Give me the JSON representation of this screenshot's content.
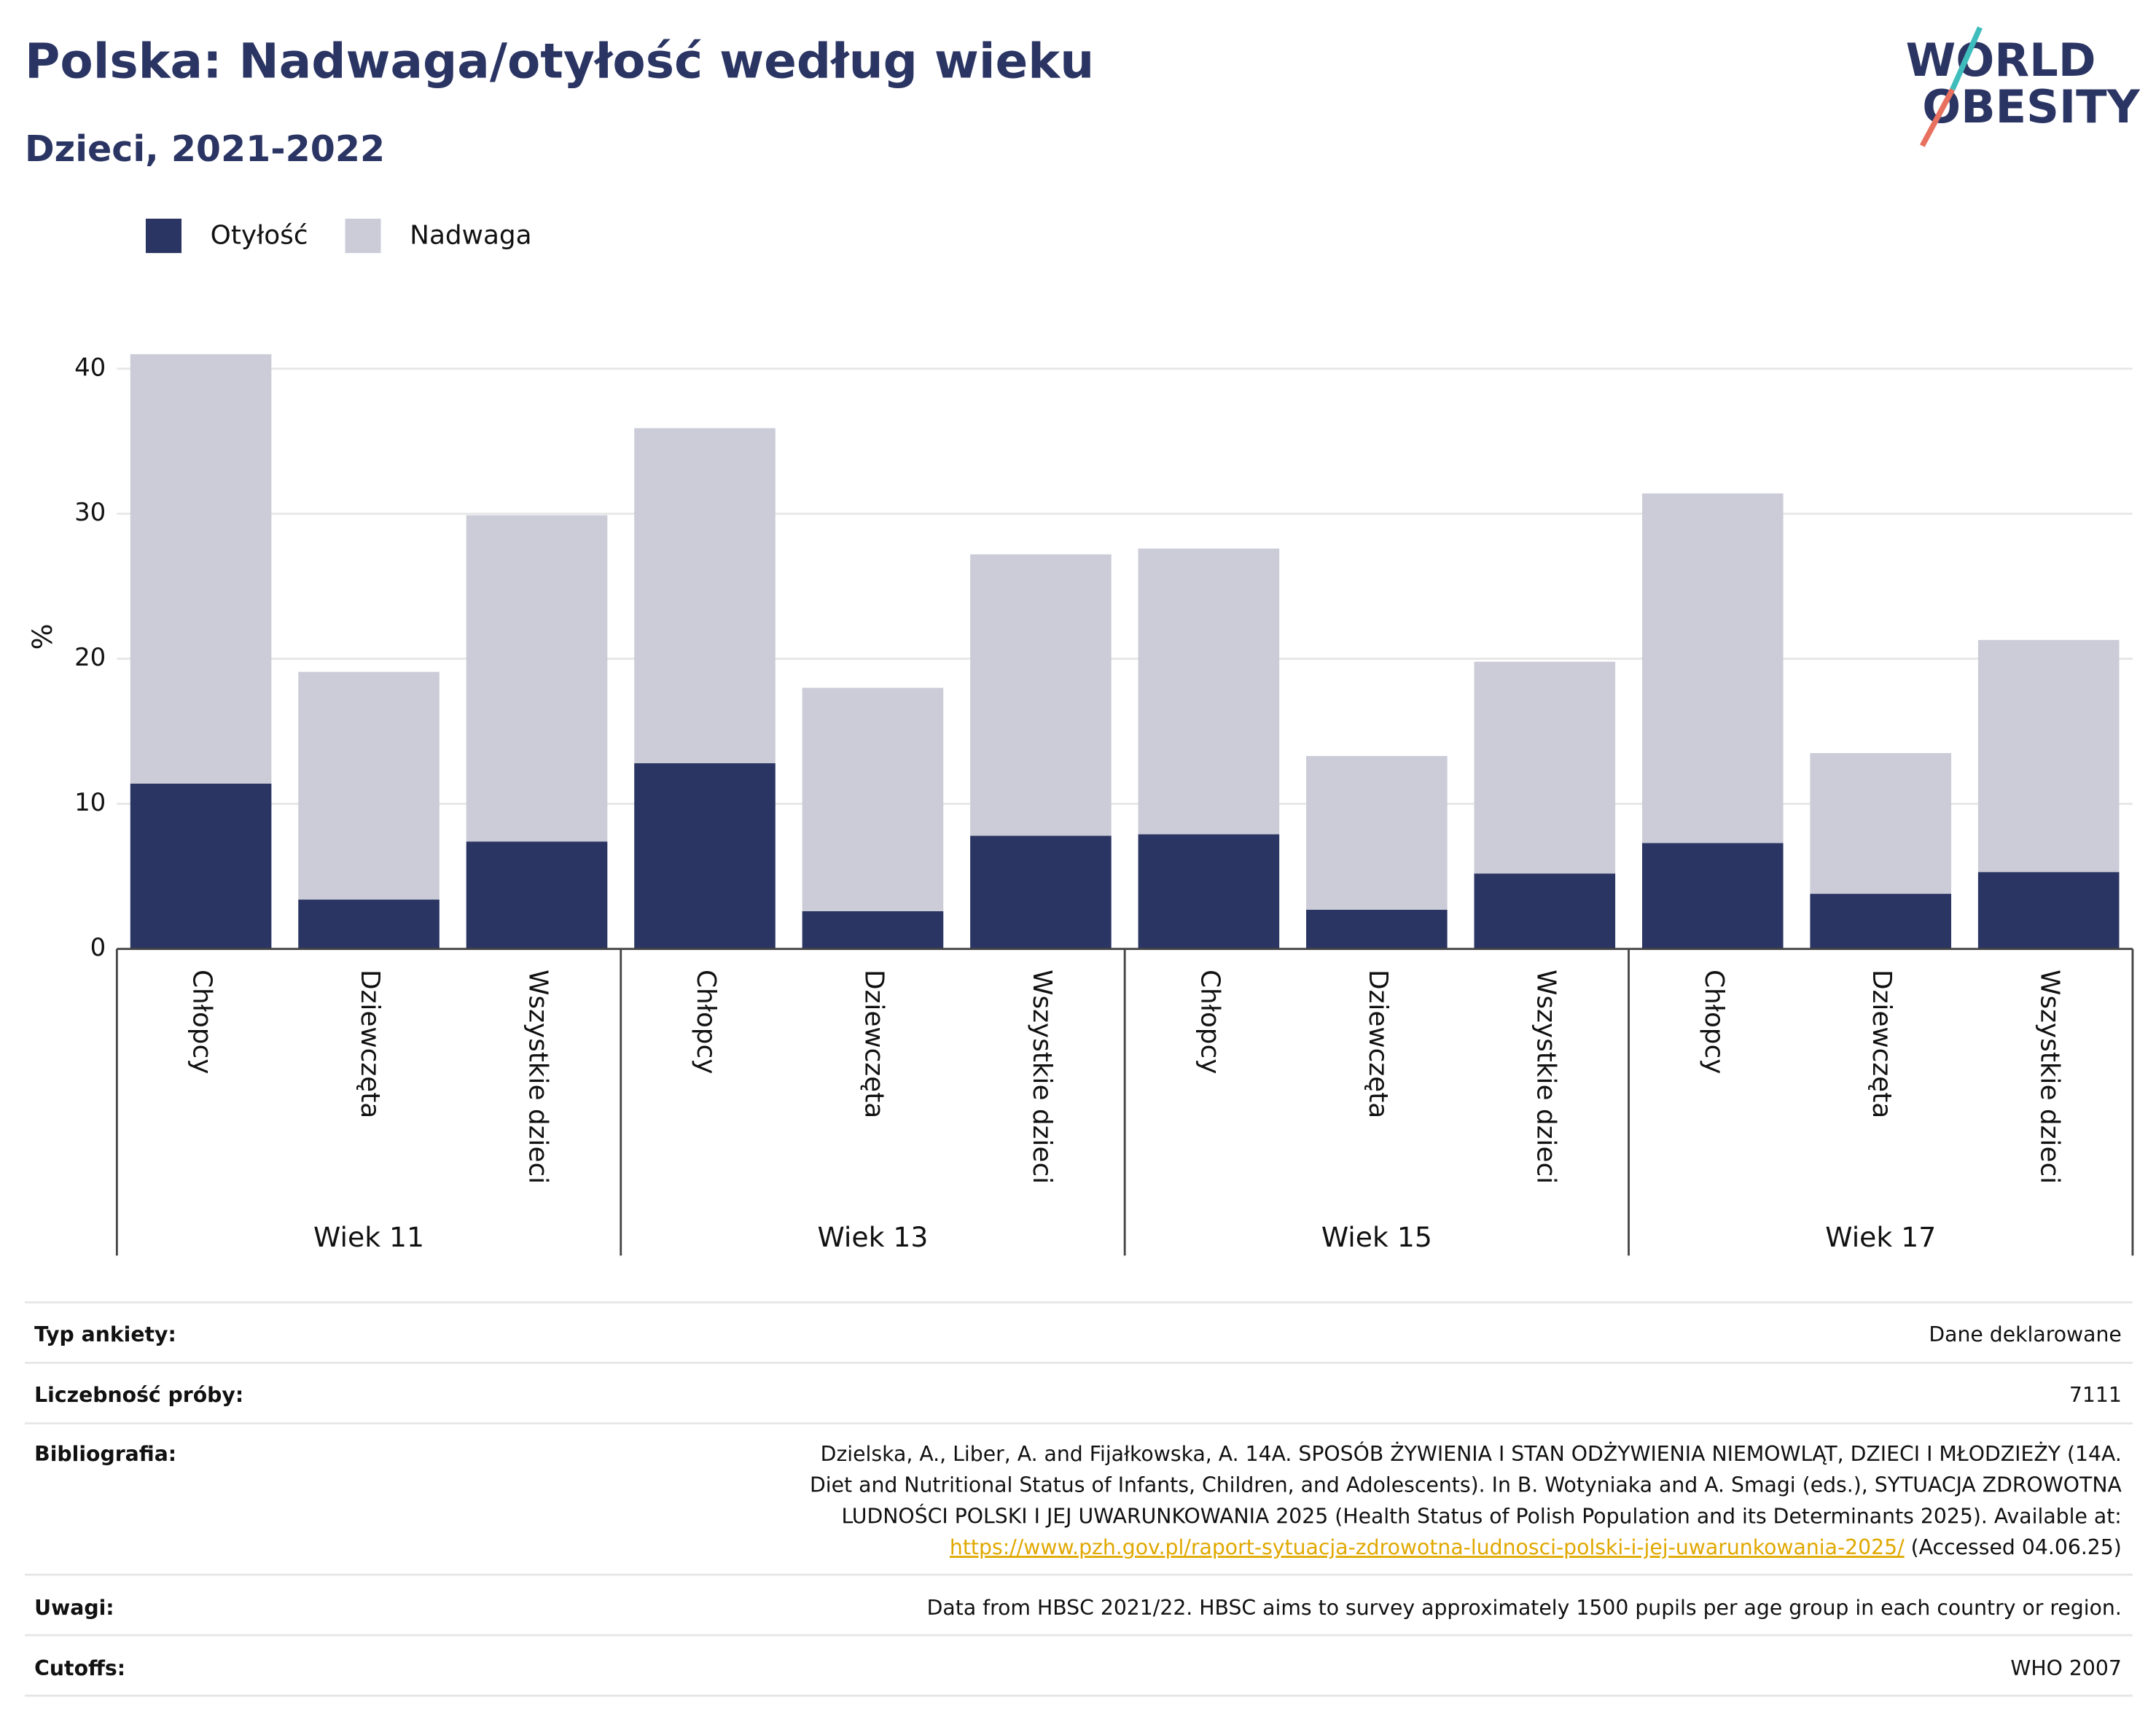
{
  "chart_data": {
    "type": "stacked_bar",
    "title": "Polska: Nadwaga/otyłość według wieku",
    "subtitle": "Dzieci, 2021-2022",
    "ylabel": "%",
    "categories": [
      "Chłopcy",
      "Dziewczęta",
      "Wszystkie dzieci",
      "Chłopcy",
      "Dziewczęta",
      "Wszystkie dzieci",
      "Chłopcy",
      "Dziewczęta",
      "Wszystkie dzieci",
      "Chłopcy",
      "Dziewczęta",
      "Wszystkie dzieci"
    ],
    "groups": [
      "Wiek 11",
      "Wiek 13",
      "Wiek 15",
      "Wiek 17"
    ],
    "series": [
      {
        "name": "Otyłość",
        "color": "#2b3563",
        "values": [
          11.4,
          3.4,
          7.4,
          12.8,
          2.6,
          7.8,
          7.9,
          2.7,
          5.2,
          7.3,
          3.8,
          5.3
        ]
      },
      {
        "name": "Nadwaga",
        "color": "#cbccd8",
        "values": [
          29.6,
          15.7,
          22.5,
          23.1,
          15.4,
          19.4,
          19.7,
          10.6,
          14.6,
          24.1,
          9.7,
          16.0
        ]
      }
    ],
    "ylim": [
      0,
      42
    ],
    "yticks": [
      0,
      10,
      20,
      30,
      40
    ],
    "grid": true,
    "legend": "top-left"
  },
  "logo": [
    "WORLD",
    "OBESITY"
  ],
  "info": [
    {
      "label": "Typ ankiety:",
      "value": "Dane deklarowane"
    },
    {
      "label": "Liczebność próby:",
      "value": "7111"
    }
  ],
  "bibliography": {
    "label": "Bibliografia:",
    "lines": [
      "Dzielska, A., Liber, A. and Fijałkowska, A. 14A. SPOSÓB ŻYWIENIA I STAN ODŻYWIENIA NIEMOWLĄT, DZIECI I MŁODZIEŻY (14A.",
      "Diet and Nutritional Status of Infants, Children, and Adolescents). In B. Wotyniaka and A. Smagi (eds.), SYTUACJA ZDROWOTNA",
      "LUDNOŚCI POLSKI I JEJ UWARUNKOWANIA 2025 (Health Status of Polish Population and its Determinants 2025). Available at:"
    ],
    "link": "https://www.pzh.gov.pl/raport-sytuacja-zdrowotna-ludnosci-polski-i-jej-uwarunkowania-2025/",
    "after": " (Accessed 04.06.25)"
  },
  "notes": [
    {
      "label": "Uwagi:",
      "value": "Data from HBSC 2021/22. HBSC aims to survey approximately 1500 pupils per age group in each country or region."
    },
    {
      "label": "Cutoffs:",
      "value": "WHO 2007"
    }
  ]
}
